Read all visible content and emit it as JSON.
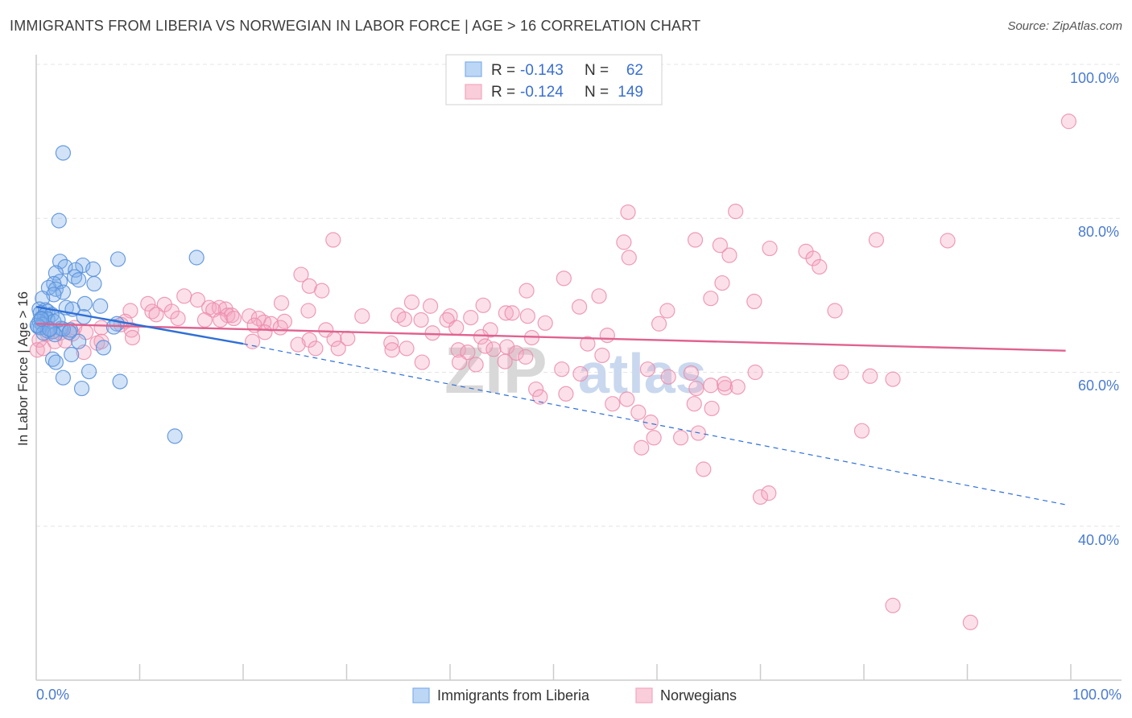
{
  "title": "IMMIGRANTS FROM LIBERIA VS NORWEGIAN IN LABOR FORCE | AGE > 16 CORRELATION CHART",
  "source": "Source: ZipAtlas.com",
  "watermark": {
    "zip": "ZIP",
    "atlas": "atlas"
  },
  "legend": {
    "rows": [
      {
        "r_label": "R =",
        "r_value": "-0.143",
        "n_label": "N =",
        "n_value": "62"
      },
      {
        "r_label": "R =",
        "r_value": "-0.124",
        "n_label": "N =",
        "n_value": "149"
      }
    ]
  },
  "bottom_legend": {
    "series1": "Immigrants from Liberia",
    "series2": "Norwegians"
  },
  "chart_data": {
    "type": "scatter",
    "title": "IMMIGRANTS FROM LIBERIA VS NORWEGIAN IN LABOR FORCE | AGE > 16 CORRELATION CHART",
    "xlabel": "",
    "ylabel": "In Labor Force | Age > 16",
    "xlim": [
      0,
      100
    ],
    "ylim": [
      20,
      100
    ],
    "x_tick_labels": [
      "0.0%",
      "100.0%"
    ],
    "y_ticks": [
      40,
      60,
      80,
      100
    ],
    "y_tick_labels": [
      "40.0%",
      "60.0%",
      "80.0%",
      "100.0%"
    ],
    "grid": true,
    "colors": {
      "liberia": "#7fb0ec",
      "liberia_line": "#2f6fd6",
      "norwegians": "#f4a7c0",
      "norwegians_line": "#e0628f"
    },
    "series": [
      {
        "name": "Immigrants from Liberia",
        "r": -0.143,
        "n": 62,
        "points": [
          [
            2.6,
            88.5
          ],
          [
            2.2,
            79.7
          ],
          [
            7.9,
            74.7
          ],
          [
            15.5,
            74.9
          ],
          [
            4.5,
            73.9
          ],
          [
            2.3,
            74.4
          ],
          [
            2.8,
            73.7
          ],
          [
            5.5,
            73.4
          ],
          [
            3.8,
            73.3
          ],
          [
            1.9,
            72.9
          ],
          [
            3.7,
            72.4
          ],
          [
            4.1,
            72.0
          ],
          [
            2.3,
            71.8
          ],
          [
            1.7,
            71.5
          ],
          [
            5.6,
            71.5
          ],
          [
            1.2,
            71.0
          ],
          [
            1.9,
            70.8
          ],
          [
            2.6,
            70.4
          ],
          [
            1.7,
            70.1
          ],
          [
            0.6,
            69.6
          ],
          [
            4.7,
            68.9
          ],
          [
            6.2,
            68.6
          ],
          [
            2.9,
            68.4
          ],
          [
            0.3,
            68.2
          ],
          [
            0.9,
            68.1
          ],
          [
            1.1,
            67.9
          ],
          [
            0.4,
            67.7
          ],
          [
            0.8,
            67.4
          ],
          [
            1.5,
            67.5
          ],
          [
            3.5,
            68.2
          ],
          [
            0.5,
            67.0
          ],
          [
            1.1,
            66.9
          ],
          [
            4.6,
            67.2
          ],
          [
            0.3,
            66.6
          ],
          [
            1.7,
            66.6
          ],
          [
            0.6,
            66.2
          ],
          [
            7.8,
            66.3
          ],
          [
            0.2,
            65.9
          ],
          [
            0.4,
            65.8
          ],
          [
            2.4,
            65.7
          ],
          [
            3.3,
            65.5
          ],
          [
            2.6,
            65.6
          ],
          [
            1.1,
            65.4
          ],
          [
            1.6,
            65.3
          ],
          [
            0.7,
            65.1
          ],
          [
            3.2,
            65.2
          ],
          [
            7.5,
            65.9
          ],
          [
            1.8,
            64.9
          ],
          [
            4.1,
            64.0
          ],
          [
            6.5,
            63.2
          ],
          [
            3.4,
            62.3
          ],
          [
            1.6,
            61.7
          ],
          [
            1.9,
            61.3
          ],
          [
            5.1,
            60.1
          ],
          [
            2.6,
            59.3
          ],
          [
            8.1,
            58.8
          ],
          [
            4.4,
            57.9
          ],
          [
            13.4,
            51.7
          ],
          [
            0.1,
            66.1
          ],
          [
            2.1,
            66.8
          ],
          [
            1.3,
            65.6
          ],
          [
            0.5,
            66.9
          ]
        ],
        "trend": {
          "x": [
            0,
            20
          ],
          "y": [
            68.5,
            63.7
          ]
        },
        "trend_extension": {
          "x": [
            20,
            99.5
          ],
          "y": [
            63.7,
            42.8
          ]
        }
      },
      {
        "name": "Norwegians",
        "r": -0.124,
        "n": 149,
        "points": [
          [
            99.8,
            92.6
          ],
          [
            57.2,
            80.8
          ],
          [
            67.6,
            80.9
          ],
          [
            28.7,
            77.2
          ],
          [
            56.8,
            76.9
          ],
          [
            63.7,
            77.2
          ],
          [
            66.1,
            76.5
          ],
          [
            81.2,
            77.2
          ],
          [
            88.1,
            77.1
          ],
          [
            70.9,
            76.1
          ],
          [
            74.4,
            75.7
          ],
          [
            57.3,
            74.9
          ],
          [
            67.0,
            75.2
          ],
          [
            75.1,
            74.8
          ],
          [
            75.7,
            73.7
          ],
          [
            25.6,
            72.7
          ],
          [
            51.0,
            72.2
          ],
          [
            26.4,
            71.2
          ],
          [
            66.3,
            71.6
          ],
          [
            27.6,
            70.6
          ],
          [
            47.4,
            70.6
          ],
          [
            54.4,
            69.9
          ],
          [
            65.2,
            69.6
          ],
          [
            14.3,
            69.9
          ],
          [
            15.6,
            69.4
          ],
          [
            23.7,
            69.0
          ],
          [
            36.3,
            69.1
          ],
          [
            38.1,
            68.6
          ],
          [
            43.2,
            68.7
          ],
          [
            52.5,
            68.5
          ],
          [
            69.4,
            69.2
          ],
          [
            10.8,
            68.9
          ],
          [
            12.4,
            68.8
          ],
          [
            16.7,
            68.4
          ],
          [
            17.7,
            68.4
          ],
          [
            18.3,
            68.2
          ],
          [
            9.1,
            68.0
          ],
          [
            11.2,
            67.9
          ],
          [
            13.1,
            67.9
          ],
          [
            17.1,
            68.1
          ],
          [
            26.3,
            68.0
          ],
          [
            45.4,
            67.7
          ],
          [
            46.0,
            67.7
          ],
          [
            61.0,
            68.0
          ],
          [
            77.2,
            68.0
          ],
          [
            11.6,
            67.5
          ],
          [
            18.5,
            67.4
          ],
          [
            18.9,
            67.4
          ],
          [
            20.6,
            67.3
          ],
          [
            31.5,
            67.3
          ],
          [
            35.0,
            67.4
          ],
          [
            40.0,
            67.3
          ],
          [
            42.0,
            67.1
          ],
          [
            47.5,
            67.3
          ],
          [
            13.7,
            67.0
          ],
          [
            16.3,
            66.8
          ],
          [
            17.8,
            66.8
          ],
          [
            19.1,
            67.0
          ],
          [
            21.5,
            67.0
          ],
          [
            24.0,
            66.6
          ],
          [
            35.6,
            66.9
          ],
          [
            37.2,
            66.8
          ],
          [
            39.7,
            66.8
          ],
          [
            8.6,
            66.6
          ],
          [
            22.0,
            66.5
          ],
          [
            21.1,
            66.1
          ],
          [
            22.7,
            66.3
          ],
          [
            49.2,
            66.4
          ],
          [
            60.2,
            66.3
          ],
          [
            8.2,
            66.2
          ],
          [
            23.6,
            65.8
          ],
          [
            6.3,
            65.8
          ],
          [
            28.0,
            65.5
          ],
          [
            43.9,
            65.5
          ],
          [
            22.1,
            65.2
          ],
          [
            40.6,
            65.8
          ],
          [
            3.7,
            65.8
          ],
          [
            4.8,
            65.2
          ],
          [
            9.2,
            65.5
          ],
          [
            1.1,
            65.0
          ],
          [
            2.3,
            65.1
          ],
          [
            3.5,
            65.0
          ],
          [
            9.3,
            64.5
          ],
          [
            38.3,
            65.1
          ],
          [
            20.9,
            64.0
          ],
          [
            26.4,
            64.2
          ],
          [
            28.8,
            64.3
          ],
          [
            30.1,
            64.4
          ],
          [
            43.0,
            64.6
          ],
          [
            47.9,
            64.5
          ],
          [
            55.2,
            64.8
          ],
          [
            0.3,
            64.2
          ],
          [
            1.8,
            64.0
          ],
          [
            2.8,
            64.1
          ],
          [
            5.9,
            63.8
          ],
          [
            6.3,
            64.0
          ],
          [
            25.3,
            63.6
          ],
          [
            27.0,
            63.1
          ],
          [
            29.2,
            63.1
          ],
          [
            34.3,
            63.8
          ],
          [
            35.8,
            63.1
          ],
          [
            43.4,
            63.4
          ],
          [
            44.2,
            63.0
          ],
          [
            45.5,
            63.3
          ],
          [
            46.4,
            62.5
          ],
          [
            53.3,
            63.7
          ],
          [
            0.1,
            62.9
          ],
          [
            0.7,
            63.1
          ],
          [
            4.6,
            62.6
          ],
          [
            34.4,
            62.9
          ],
          [
            40.8,
            62.9
          ],
          [
            41.7,
            62.6
          ],
          [
            37.3,
            61.3
          ],
          [
            40.9,
            61.3
          ],
          [
            42.5,
            61.0
          ],
          [
            45.3,
            61.4
          ],
          [
            47.3,
            62.0
          ],
          [
            54.7,
            62.2
          ],
          [
            59.1,
            60.4
          ],
          [
            63.3,
            59.9
          ],
          [
            50.8,
            60.4
          ],
          [
            69.5,
            60.0
          ],
          [
            77.8,
            60.0
          ],
          [
            82.8,
            59.1
          ],
          [
            80.6,
            59.5
          ],
          [
            52.6,
            59.8
          ],
          [
            61.1,
            59.4
          ],
          [
            66.6,
            58.0
          ],
          [
            66.5,
            58.5
          ],
          [
            63.8,
            57.9
          ],
          [
            65.2,
            58.3
          ],
          [
            67.8,
            58.1
          ],
          [
            51.2,
            57.2
          ],
          [
            48.3,
            57.8
          ],
          [
            48.7,
            56.8
          ],
          [
            55.7,
            55.9
          ],
          [
            57.1,
            56.5
          ],
          [
            63.6,
            55.9
          ],
          [
            58.2,
            54.8
          ],
          [
            65.3,
            55.3
          ],
          [
            59.4,
            53.5
          ],
          [
            59.7,
            51.5
          ],
          [
            64.0,
            52.1
          ],
          [
            62.3,
            51.5
          ],
          [
            79.8,
            52.4
          ],
          [
            58.5,
            50.2
          ],
          [
            64.5,
            47.4
          ],
          [
            70.0,
            43.8
          ],
          [
            70.8,
            44.3
          ],
          [
            82.8,
            29.7
          ],
          [
            90.3,
            27.5
          ]
        ],
        "trend": {
          "x": [
            0,
            99.5
          ],
          "y": [
            66.3,
            62.8
          ]
        }
      }
    ]
  }
}
